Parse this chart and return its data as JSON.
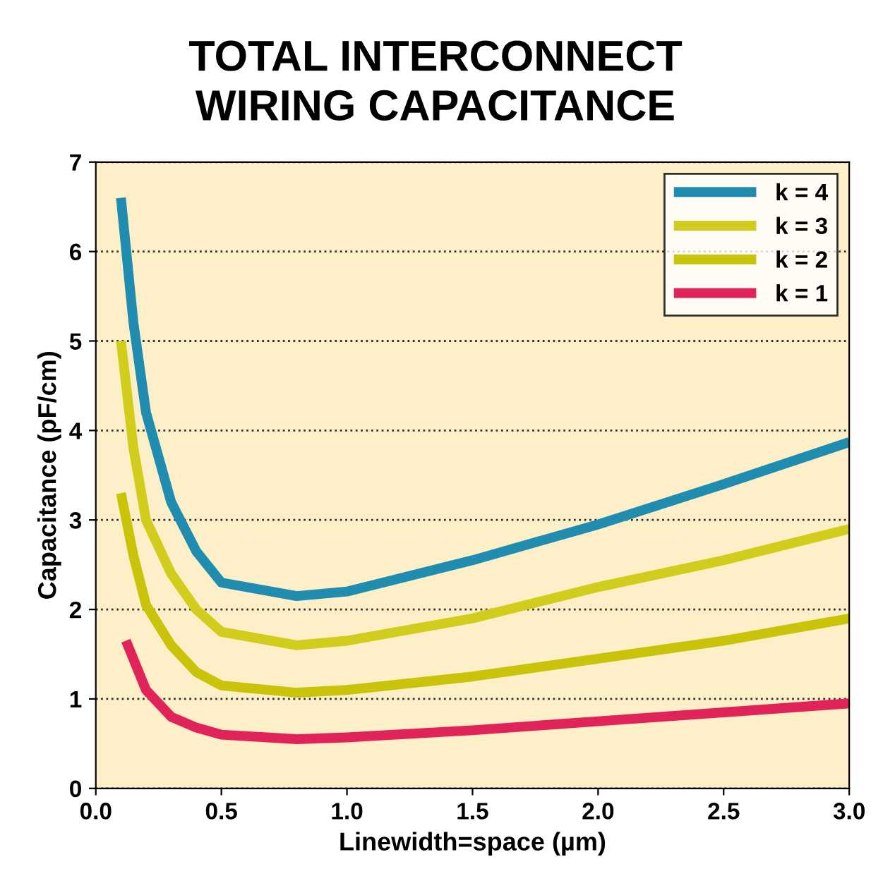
{
  "chart_data": {
    "type": "line",
    "title": "TOTAL INTERCONNECT\nWIRING CAPACITANCE",
    "xlabel": "Linewidth=space (µm)",
    "ylabel": "Capacitance (pF/cm)",
    "series": [
      {
        "name": "k = 4",
        "color": "#1f8cb0",
        "x": [
          0.1,
          0.15,
          0.2,
          0.3,
          0.4,
          0.5,
          0.8,
          1.0,
          1.5,
          2.0,
          2.5,
          3.0
        ],
        "values": [
          6.6,
          5.2,
          4.2,
          3.2,
          2.65,
          2.3,
          2.15,
          2.2,
          2.55,
          2.95,
          3.4,
          3.87
        ]
      },
      {
        "name": "k = 3",
        "color": "#d2cc1c",
        "x": [
          0.1,
          0.15,
          0.2,
          0.3,
          0.4,
          0.5,
          0.8,
          1.0,
          1.5,
          2.0,
          2.5,
          3.0
        ],
        "values": [
          5.0,
          3.8,
          3.0,
          2.4,
          2.0,
          1.75,
          1.6,
          1.65,
          1.9,
          2.25,
          2.55,
          2.9
        ]
      },
      {
        "name": "k = 2",
        "color": "#c9c40a",
        "x": [
          0.1,
          0.15,
          0.2,
          0.3,
          0.4,
          0.5,
          0.8,
          1.0,
          1.5,
          2.0,
          2.5,
          3.0
        ],
        "values": [
          3.3,
          2.6,
          2.05,
          1.6,
          1.3,
          1.15,
          1.07,
          1.1,
          1.25,
          1.45,
          1.65,
          1.9
        ]
      },
      {
        "name": "k = 1",
        "color": "#e0245a",
        "x": [
          0.12,
          0.2,
          0.3,
          0.4,
          0.5,
          0.8,
          1.0,
          1.5,
          2.0,
          2.5,
          3.0
        ],
        "values": [
          1.65,
          1.1,
          0.8,
          0.68,
          0.6,
          0.55,
          0.57,
          0.65,
          0.75,
          0.85,
          0.95
        ]
      }
    ],
    "xlim": [
      0,
      3
    ],
    "ylim": [
      0,
      7
    ],
    "xticks": [
      {
        "value": 0,
        "label": "0.0"
      },
      0.5,
      {
        "value": 1,
        "label": "1.0"
      },
      1.5,
      {
        "value": 2,
        "label": "2.0"
      },
      2.5,
      {
        "value": 3,
        "label": "3.0"
      }
    ],
    "yticks": [
      0,
      1,
      2,
      3,
      4,
      5,
      6,
      7
    ],
    "grid": "y",
    "legend": "top right",
    "marker": "none",
    "line_style": "solid"
  }
}
